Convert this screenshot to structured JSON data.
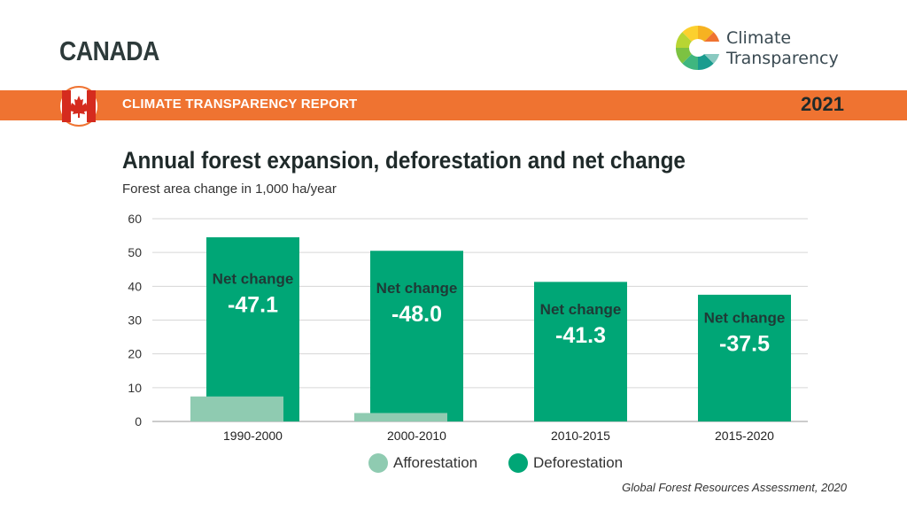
{
  "header": {
    "country": "CANADA",
    "report_label": "CLIMATE TRANSPARENCY REPORT",
    "year": "2021",
    "logo_line1": "Climate",
    "logo_line2": "Transparency"
  },
  "colors": {
    "band": "#ef7331",
    "afforestation": "#8fcbb1",
    "deforestation": "#00a676",
    "flag_red": "#d52b1e"
  },
  "icons": [
    "maple-leaf-flag-icon",
    "climate-transparency-logo-icon"
  ],
  "chart_data": {
    "type": "bar",
    "title": "Annual forest expansion, deforestation and net change",
    "subtitle": "Forest area change in 1,000 ha/year",
    "categories": [
      "1990-2000",
      "2000-2010",
      "2010-2015",
      "2015-2020"
    ],
    "series": [
      {
        "name": "Afforestation",
        "values": [
          7.4,
          2.5,
          0,
          0
        ]
      },
      {
        "name": "Deforestation",
        "values": [
          54.5,
          50.5,
          41.3,
          37.5
        ]
      }
    ],
    "annotations": [
      {
        "label": "Net change",
        "value": "-47.1"
      },
      {
        "label": "Net change",
        "value": "-48.0"
      },
      {
        "label": "Net change",
        "value": "-41.3"
      },
      {
        "label": "Net change",
        "value": "-37.5"
      }
    ],
    "yticks": [
      "0",
      "10",
      "20",
      "30",
      "40",
      "50",
      "60"
    ],
    "ylim": [
      0,
      60
    ],
    "grid": true,
    "legend": "bottom",
    "source": "Global Forest Resources Assessment, 2020"
  }
}
